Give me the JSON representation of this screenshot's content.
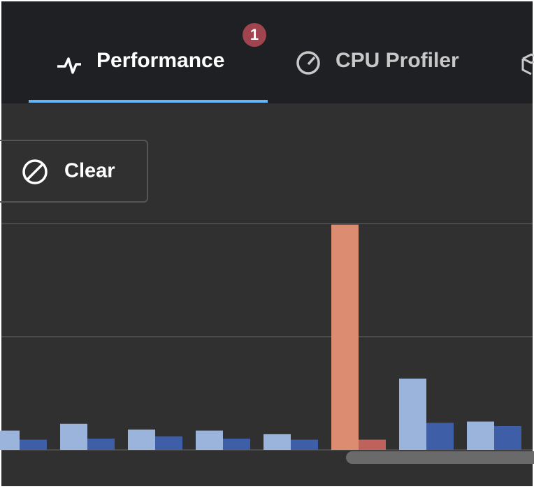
{
  "tabs": [
    {
      "label": "Performance",
      "badge": 1
    },
    {
      "label": "CPU Profiler"
    }
  ],
  "toolbar": {
    "clear_button": "Clear"
  },
  "chart_data": {
    "type": "bar",
    "ylim": [
      0,
      2
    ],
    "series": [
      {
        "color": "#9ab4dc",
        "values": [
          0.17,
          0.23,
          0.18,
          0.17,
          0.14,
          1.99,
          0.63,
          0.25
        ],
        "point_colors": [
          null,
          null,
          null,
          null,
          null,
          "#dc8c70",
          null,
          null
        ]
      },
      {
        "color": "#3e5ea8",
        "values": [
          0.09,
          0.1,
          0.12,
          0.1,
          0.09,
          0.09,
          0.24,
          0.21
        ],
        "point_colors": [
          null,
          null,
          null,
          null,
          null,
          "#c0625c",
          null,
          null
        ]
      }
    ]
  }
}
